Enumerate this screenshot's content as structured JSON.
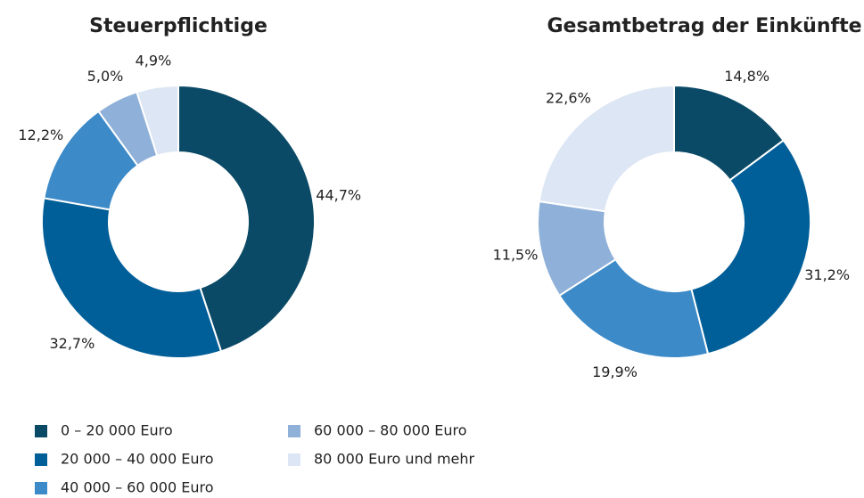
{
  "chart_data": [
    {
      "type": "donut",
      "title": "Steuerpflichtige",
      "categories": [
        "0 – 20 000 Euro",
        "20 000 – 40 000 Euro",
        "40 000 – 60 000 Euro",
        "60 000 – 80 000 Euro",
        "80 000 Euro und mehr"
      ],
      "values": [
        44.7,
        32.7,
        12.2,
        5.0,
        4.9
      ],
      "value_labels": [
        "44,7%",
        "32,7%",
        "12,2%",
        "5,0%",
        "4,9%"
      ],
      "colors": [
        "#0b4a66",
        "#005e98",
        "#3c8ac8",
        "#8fb0d8",
        "#dde6f4"
      ]
    },
    {
      "type": "donut",
      "title": "Gesamtbetrag der Einkünfte",
      "categories": [
        "0 – 20 000 Euro",
        "20 000 – 40 000 Euro",
        "40 000 – 60 000 Euro",
        "60 000 – 80 000 Euro",
        "80 000 Euro und mehr"
      ],
      "values": [
        14.8,
        31.2,
        19.9,
        11.5,
        22.6
      ],
      "value_labels": [
        "14,8%",
        "31,2%",
        "19,9%",
        "11,5%",
        "22,6%"
      ],
      "colors": [
        "#0b4a66",
        "#005e98",
        "#3c8ac8",
        "#8fb0d8",
        "#dde6f4"
      ]
    }
  ]
}
